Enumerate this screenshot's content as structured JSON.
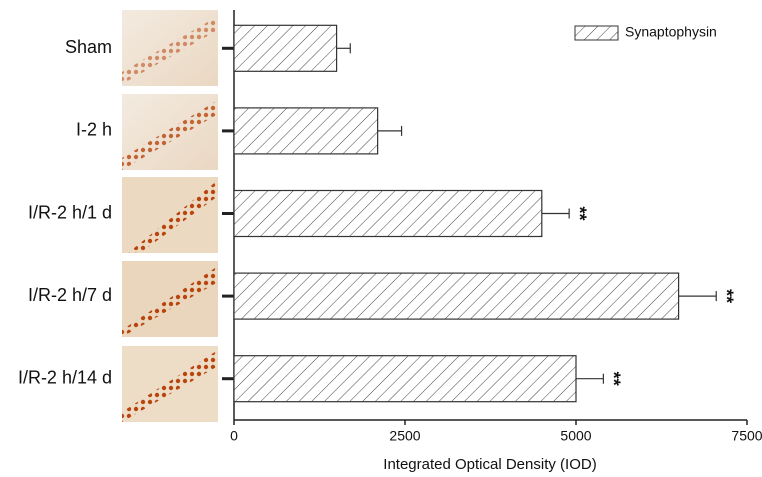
{
  "chart_data": {
    "type": "hbar",
    "categories": [
      "Sham",
      "I-2 h",
      "I/R-2 h/1 d",
      "I/R-2 h/7 d",
      "I/R-2 h/14 d"
    ],
    "series": [
      {
        "name": "Synaptophysin",
        "color": "#333333",
        "values": [
          1500,
          2100,
          4500,
          6500,
          5000
        ],
        "errors": [
          200,
          350,
          400,
          550,
          400
        ]
      }
    ],
    "significance": [
      null,
      null,
      "**",
      "**",
      "**"
    ],
    "xlabel": "Integrated Optical Density (IOD)",
    "xlim": [
      0,
      7500
    ],
    "xticks": [
      0,
      2500,
      5000,
      7500
    ],
    "hatch": true,
    "legend": "upper right"
  }
}
